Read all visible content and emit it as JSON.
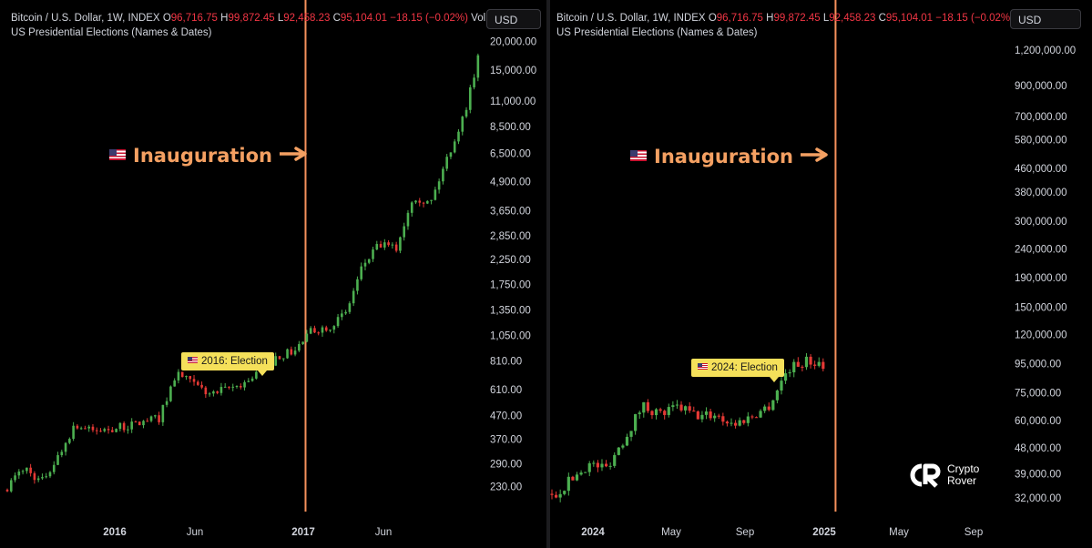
{
  "header": {
    "symbol_label": "Bitcoin / U.S. Dollar, 1W, INDEX",
    "open_label": "O",
    "open_value": "96,716.75",
    "high_label": "H",
    "high_value": "99,872.45",
    "low_label": "L",
    "low_value": "92,458.23",
    "close_label": "C",
    "close_value": "95,104.01",
    "change": "−18.15 (−0.02%)",
    "volume_label": "Vol...",
    "subtitle": "US Presidential Elections (Names & Dates)",
    "currency_button": "USD"
  },
  "annotations": {
    "inauguration_left": "Inauguration",
    "inauguration_right": "Inauguration",
    "election_left": "2016: Election",
    "election_right": "2024: Election"
  },
  "logo": {
    "line1": "Crypto",
    "line2": "Rover"
  },
  "colors": {
    "up": "#4caf50",
    "down": "#e53935",
    "inauguration_line": "#f6915c",
    "annotation": "#f4a062",
    "label_bg": "#f5e05a"
  },
  "chart_data": [
    {
      "type": "candlestick",
      "scale": "log",
      "timeframe": "1W",
      "ylim": [
        200,
        21000
      ],
      "y_ticks": [
        "20,000.00",
        "15,000.00",
        "11,000.00",
        "8,500.00",
        "6,500.00",
        "4,900.00",
        "3,650.00",
        "2,850.00",
        "2,250.00",
        "1,750.00",
        "1,350.00",
        "1,050.00",
        "810.00",
        "610.00",
        "470.00",
        "370.00",
        "290.00",
        "230.00"
      ],
      "x_ticks": [
        "2016",
        "Jun",
        "2017",
        "Jun"
      ],
      "x_range": [
        "2015-08",
        "2017-12"
      ],
      "events": [
        {
          "label": "2016: Election",
          "date": "2016-11-08"
        },
        {
          "label": "Inauguration",
          "date": "2017-01-20"
        }
      ],
      "trend": [
        [
          "2015-08",
          230
        ],
        [
          "2015-09",
          280
        ],
        [
          "2015-10",
          240
        ],
        [
          "2015-11",
          310
        ],
        [
          "2015-12",
          430
        ],
        [
          "2016-01",
          400
        ],
        [
          "2016-03",
          420
        ],
        [
          "2016-05",
          460
        ],
        [
          "2016-06",
          720
        ],
        [
          "2016-07",
          640
        ],
        [
          "2016-08",
          580
        ],
        [
          "2016-09",
          610
        ],
        [
          "2016-10",
          650
        ],
        [
          "2016-11",
          740
        ],
        [
          "2016-12",
          850
        ],
        [
          "2017-01",
          900
        ],
        [
          "2017-02",
          1100
        ],
        [
          "2017-03",
          1150
        ],
        [
          "2017-04",
          1300
        ],
        [
          "2017-05",
          2100
        ],
        [
          "2017-06",
          2600
        ],
        [
          "2017-07",
          2500
        ],
        [
          "2017-08",
          4300
        ],
        [
          "2017-09",
          3900
        ],
        [
          "2017-10",
          6200
        ],
        [
          "2017-11",
          9500
        ],
        [
          "2017-12",
          19000
        ]
      ]
    },
    {
      "type": "candlestick",
      "scale": "log",
      "timeframe": "1W",
      "ylim": [
        30000,
        1300000
      ],
      "y_ticks": [
        "1,200,000.00",
        "900,000.00",
        "700,000.00",
        "580,000.00",
        "460,000.00",
        "380,000.00",
        "300,000.00",
        "240,000.00",
        "190,000.00",
        "150,000.00",
        "120,000.00",
        "95,000.00",
        "75,000.00",
        "60,000.00",
        "48,000.00",
        "39,000.00",
        "32,000.00"
      ],
      "x_ticks": [
        "2024",
        "May",
        "Sep",
        "2025",
        "May",
        "Sep"
      ],
      "x_range": [
        "2023-10",
        "2025-11"
      ],
      "events": [
        {
          "label": "2024: Election",
          "date": "2024-11-05"
        },
        {
          "label": "Inauguration",
          "date": "2025-01-20"
        }
      ],
      "trend": [
        [
          "2023-10",
          32000
        ],
        [
          "2023-11",
          37000
        ],
        [
          "2023-12",
          42000
        ],
        [
          "2024-01",
          41000
        ],
        [
          "2024-02",
          52000
        ],
        [
          "2024-03",
          68000
        ],
        [
          "2024-04",
          63000
        ],
        [
          "2024-05",
          67000
        ],
        [
          "2024-06",
          62000
        ],
        [
          "2024-07",
          63000
        ],
        [
          "2024-08",
          58000
        ],
        [
          "2024-09",
          62000
        ],
        [
          "2024-10",
          68000
        ],
        [
          "2024-11",
          91000
        ],
        [
          "2024-12",
          97000
        ],
        [
          "2025-01",
          95000
        ]
      ]
    }
  ]
}
